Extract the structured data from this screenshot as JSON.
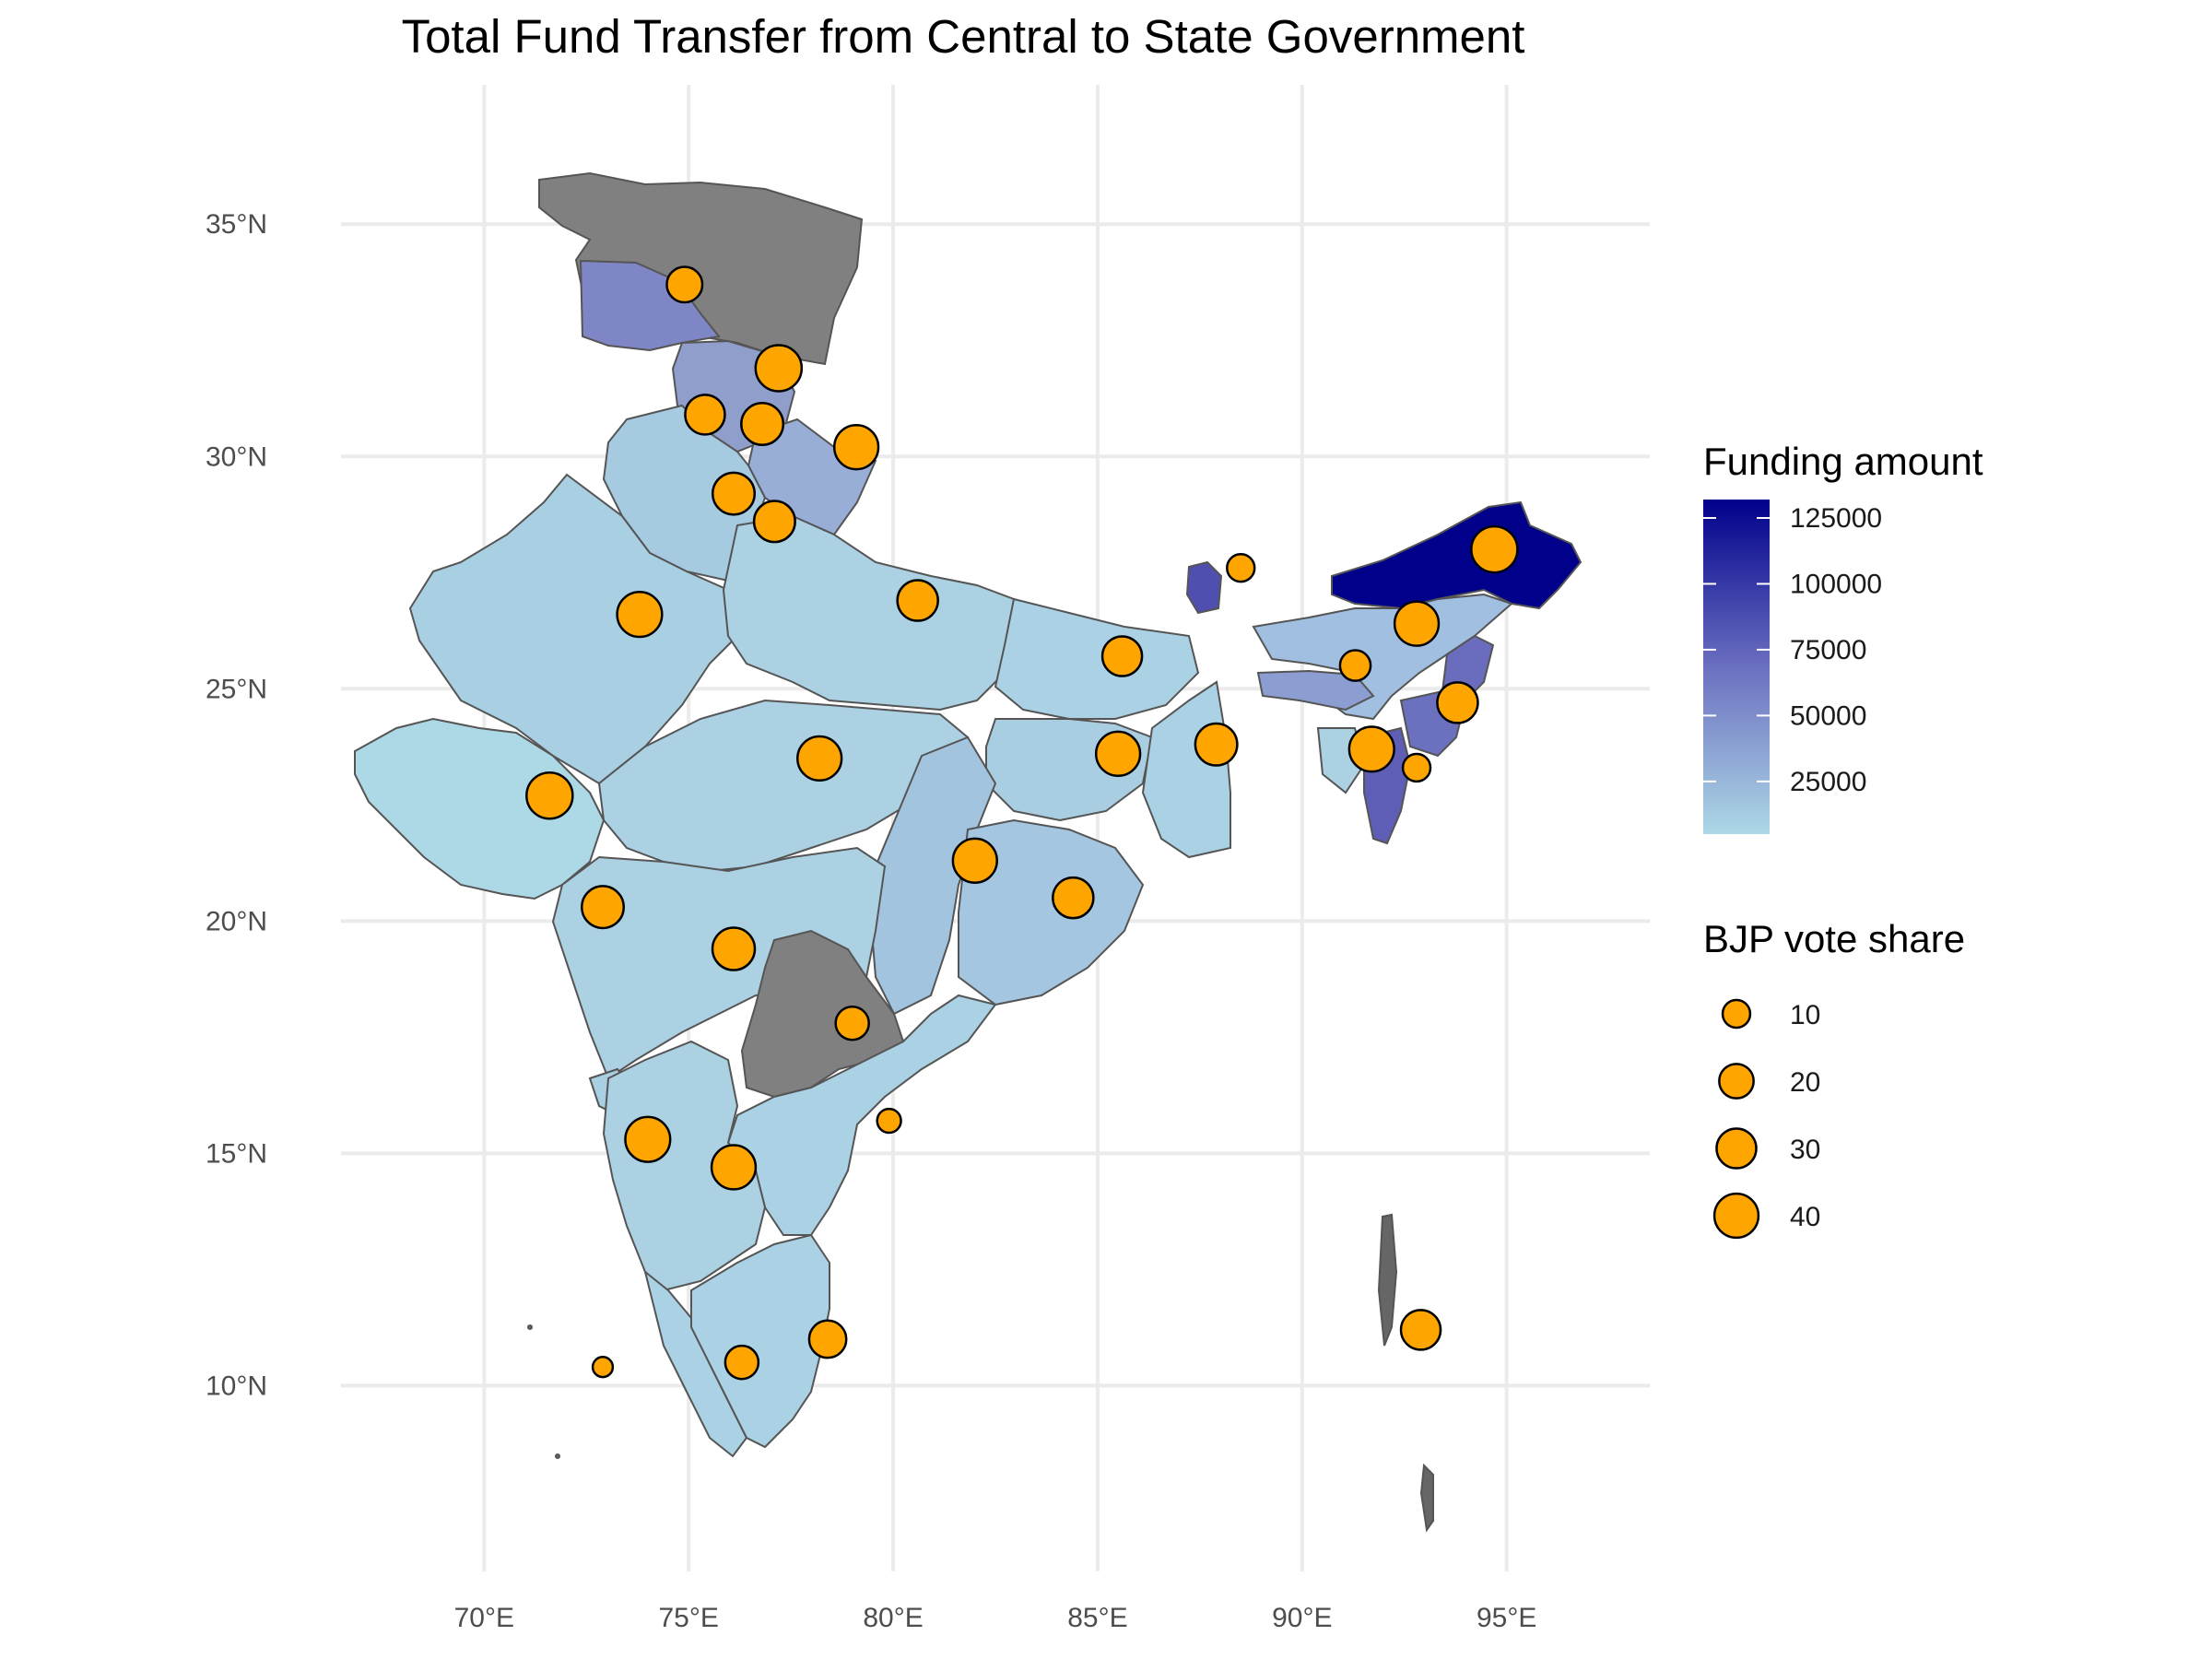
{
  "title": "Total Fund Transfer from Central to State Government",
  "chart_data": {
    "type": "map",
    "x_axis": {
      "ticks": [
        "70°E",
        "75°E",
        "80°E",
        "85°E",
        "90°E",
        "95°E"
      ],
      "tick_values": [
        70,
        75,
        80,
        85,
        90,
        95
      ],
      "range": [
        66.5,
        98.5
      ]
    },
    "y_axis": {
      "ticks": [
        "10°N",
        "15°N",
        "20°N",
        "25°N",
        "30°N",
        "35°N"
      ],
      "tick_values": [
        10,
        15,
        20,
        25,
        30,
        35
      ],
      "range": [
        6,
        38
      ]
    },
    "grid": true,
    "colors": {
      "funding_low": "#ADD8E6",
      "funding_high": "#00008B",
      "no_data": "#808080",
      "marker_fill": "#FFA500",
      "marker_stroke": "#000000",
      "grid": "#EBEBEB"
    },
    "fill_legend": {
      "title": "Funding amount",
      "labels": [
        "125000",
        "100000",
        "75000",
        "50000",
        "25000"
      ],
      "values": [
        125000,
        100000,
        75000,
        50000,
        25000
      ],
      "min": 5000,
      "max": 132000
    },
    "size_legend": {
      "title": "BJP vote share",
      "labels": [
        "10",
        "20",
        "30",
        "40"
      ],
      "values": [
        10,
        20,
        30,
        40
      ]
    },
    "points": [
      {
        "lon": 74.9,
        "lat": 33.7,
        "vote_share": 22
      },
      {
        "lon": 77.2,
        "lat": 31.9,
        "vote_share": 45
      },
      {
        "lon": 75.4,
        "lat": 30.9,
        "vote_share": 30
      },
      {
        "lon": 76.8,
        "lat": 30.7,
        "vote_share": 35
      },
      {
        "lon": 79.1,
        "lat": 30.2,
        "vote_share": 40
      },
      {
        "lon": 76.1,
        "lat": 29.2,
        "vote_share": 35
      },
      {
        "lon": 77.1,
        "lat": 28.6,
        "vote_share": 33
      },
      {
        "lon": 73.8,
        "lat": 26.6,
        "vote_share": 42
      },
      {
        "lon": 80.6,
        "lat": 26.9,
        "vote_share": 32
      },
      {
        "lon": 85.6,
        "lat": 25.7,
        "vote_share": 30
      },
      {
        "lon": 88.5,
        "lat": 27.6,
        "vote_share": 10
      },
      {
        "lon": 94.7,
        "lat": 28.0,
        "vote_share": 45
      },
      {
        "lon": 92.8,
        "lat": 26.4,
        "vote_share": 40
      },
      {
        "lon": 91.3,
        "lat": 25.5,
        "vote_share": 14
      },
      {
        "lon": 93.8,
        "lat": 24.7,
        "vote_share": 32
      },
      {
        "lon": 91.7,
        "lat": 23.7,
        "vote_share": 42
      },
      {
        "lon": 92.8,
        "lat": 23.3,
        "vote_share": 10
      },
      {
        "lon": 71.6,
        "lat": 22.7,
        "vote_share": 45
      },
      {
        "lon": 78.2,
        "lat": 23.5,
        "vote_share": 40
      },
      {
        "lon": 85.5,
        "lat": 23.6,
        "vote_share": 40
      },
      {
        "lon": 87.9,
        "lat": 23.8,
        "vote_share": 35
      },
      {
        "lon": 82.0,
        "lat": 21.3,
        "vote_share": 40
      },
      {
        "lon": 84.4,
        "lat": 20.5,
        "vote_share": 32
      },
      {
        "lon": 72.9,
        "lat": 20.3,
        "vote_share": 35
      },
      {
        "lon": 76.1,
        "lat": 19.4,
        "vote_share": 36
      },
      {
        "lon": 79.0,
        "lat": 17.8,
        "vote_share": 18
      },
      {
        "lon": 79.9,
        "lat": 15.7,
        "vote_share": 6
      },
      {
        "lon": 74.0,
        "lat": 15.3,
        "vote_share": 42
      },
      {
        "lon": 76.1,
        "lat": 14.7,
        "vote_share": 40
      },
      {
        "lon": 78.4,
        "lat": 11.0,
        "vote_share": 25
      },
      {
        "lon": 76.3,
        "lat": 10.5,
        "vote_share": 18
      },
      {
        "lon": 72.9,
        "lat": 10.4,
        "vote_share": 3
      },
      {
        "lon": 92.9,
        "lat": 11.2,
        "vote_share": 30
      }
    ]
  }
}
